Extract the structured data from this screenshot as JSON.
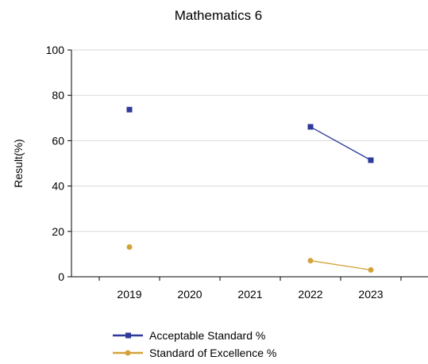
{
  "chart_data": {
    "type": "line",
    "title": "Mathematics 6",
    "ylabel": "Result(%)",
    "xlabel": "",
    "categories": [
      "2019",
      "2020",
      "2021",
      "2022",
      "2023"
    ],
    "ylim": [
      0,
      100
    ],
    "yticks": [
      0,
      20,
      40,
      60,
      80,
      100
    ],
    "grid": true,
    "legend_position": "bottom",
    "series": [
      {
        "name": "Acceptable Standard %",
        "color": "#2f3a9a",
        "marker": "square",
        "values": [
          73.7,
          null,
          null,
          66.1,
          51.4
        ]
      },
      {
        "name": "Standard of Excellence %",
        "color": "#d4a23a",
        "marker": "circle",
        "values": [
          13.1,
          null,
          null,
          7.1,
          3.0
        ]
      }
    ]
  }
}
